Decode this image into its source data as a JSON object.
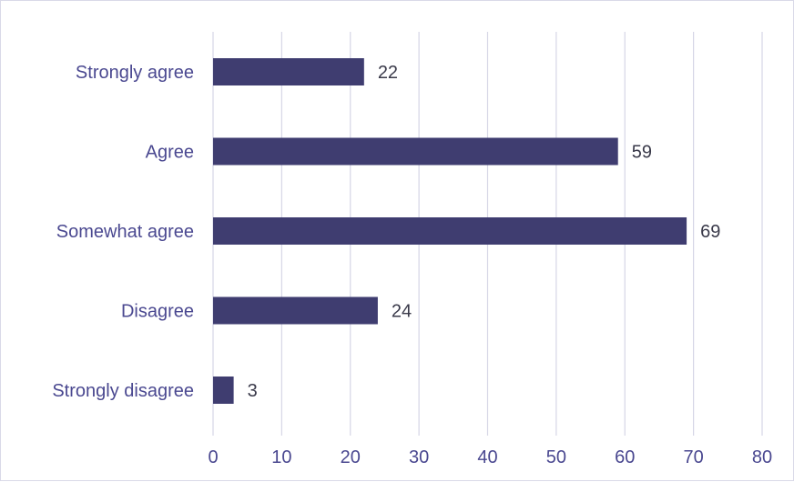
{
  "chart_data": {
    "type": "bar",
    "orientation": "horizontal",
    "categories": [
      "Strongly agree",
      "Agree",
      "Somewhat agree",
      "Disagree",
      "Strongly disagree"
    ],
    "values": [
      22,
      59,
      69,
      24,
      3
    ],
    "xlim": [
      0,
      80
    ],
    "x_ticks": [
      "0",
      "10",
      "20",
      "30",
      "40",
      "50",
      "60",
      "70",
      "80"
    ],
    "grid": "vertical",
    "data_labels": true,
    "colors": {
      "bar": "#3f3d70",
      "grid": "#d6d6e6",
      "axis_text": "#4a4890",
      "value_text": "#3a3a4a"
    }
  }
}
